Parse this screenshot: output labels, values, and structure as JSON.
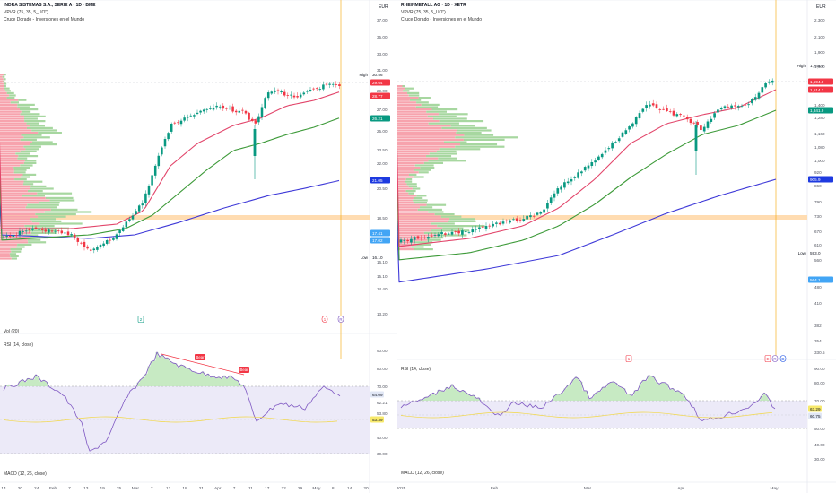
{
  "charts": [
    {
      "id": "left",
      "title": "INDRA SISTEMAS S.A., SERIE A · 1D · BME",
      "vpvr_label": "VPVR (75, 35, 5_UO\")",
      "indicator_label": "Cruce Dorado - Inversiones en el Mundo",
      "vol_label": "Vol (20)",
      "rsi_label": "RSI (14, close)",
      "macd_label": "MACD (12, 26, close)",
      "currency": "EUR",
      "price_ticks": [
        "37.00",
        "35.00",
        "33.00",
        "31.00",
        "29.00",
        "27.00",
        "25.00",
        "23.50",
        "22.00",
        "20.50",
        "18.50",
        "16.10",
        "15.10",
        "14.40",
        "13.20"
      ],
      "price_ticks_y": [
        22,
        41,
        60,
        78,
        101,
        122,
        146,
        167,
        182,
        210,
        243,
        292,
        308,
        322,
        350
      ],
      "rsi_ticks": [
        "90.00",
        "80.00",
        "70.00",
        "62.21",
        "53.80",
        "40.00",
        "30.00"
      ],
      "rsi_ticks_y": [
        391,
        411,
        431,
        449,
        461,
        488,
        506
      ],
      "x_ticks": [
        "14",
        "20",
        "24",
        "Feb",
        "7",
        "13",
        "19",
        "25",
        "Mar",
        "7",
        "12",
        "18",
        "21",
        "Apr",
        "7",
        "11",
        "17",
        "22",
        "29",
        "May",
        "8",
        "14",
        "20"
      ],
      "price_labels": [
        {
          "text": "High",
          "value": "30.56",
          "y": 83,
          "bg": "none"
        },
        {
          "text": "",
          "value": "29.64",
          "y": 92,
          "bg": "#f23645"
        },
        {
          "text": "",
          "value": "28.77",
          "y": 107,
          "bg": "#f23645"
        },
        {
          "text": "",
          "value": "26.21",
          "y": 132,
          "bg": "#089981"
        },
        {
          "text": "",
          "value": "21.05",
          "y": 201,
          "bg": "#1e3ae0"
        },
        {
          "text": "",
          "value": "17.41",
          "y": 260,
          "bg": "#42a5f5"
        },
        {
          "text": "",
          "value": "17.02",
          "y": 268,
          "bg": "#42a5f5"
        },
        {
          "text": "Low",
          "value": "16.10",
          "y": 287,
          "bg": "none"
        }
      ],
      "rsi_labels": [
        {
          "value": "64.09",
          "y": 440,
          "bg": "#e1e7f5"
        },
        {
          "value": "53.39",
          "y": 468,
          "bg": "#f7e96b"
        }
      ],
      "annotations": [
        "Bear",
        "Bear"
      ],
      "markers": [
        "2",
        "1",
        "R"
      ]
    },
    {
      "id": "right",
      "title": "RHEINMETALL AG · 1D · XETR",
      "vpvr_label": "VPVR (75, 35, 5_UO\")",
      "indicator_label": "Cruce Dorado - Inversiones en el Mundo",
      "vol_label": "",
      "rsi_label": "RSI (14, close)",
      "macd_label": "MACD (12, 26, close)",
      "currency": "EUR",
      "price_ticks": [
        "2,300",
        "2,100",
        "1,900",
        "1,600",
        "1,400",
        "1,280",
        "1,160",
        "1,080",
        "1,000",
        "920",
        "860",
        "790",
        "730",
        "670",
        "610",
        "560",
        "480",
        "410",
        "382",
        "354",
        "330.5"
      ],
      "price_ticks_y": [
        22,
        41,
        58,
        74,
        117,
        131,
        149,
        164,
        179,
        192,
        207,
        225,
        241,
        258,
        273,
        290,
        320,
        338,
        363,
        380,
        393
      ],
      "rsi_ticks": [
        "90.00",
        "80.00",
        "70.00",
        "50.00",
        "40.00",
        "30.00"
      ],
      "rsi_ticks_y": [
        411,
        427,
        447,
        478,
        496,
        512
      ],
      "x_ticks": [
        "2025",
        "Feb",
        "Mar",
        "Apr",
        "May"
      ],
      "price_labels": [
        {
          "text": "High",
          "value": "1,744.0",
          "y": 73,
          "bg": "none"
        },
        {
          "text": "",
          "value": "1,594.0",
          "y": 91,
          "bg": "#f23645"
        },
        {
          "text": "",
          "value": "1,514.2",
          "y": 100,
          "bg": "#f23645"
        },
        {
          "text": "",
          "value": "1,341.9",
          "y": 123,
          "bg": "#089981"
        },
        {
          "text": "",
          "value": "905.9",
          "y": 200,
          "bg": "#1e3ae0"
        },
        {
          "text": "Low",
          "value": "593.0",
          "y": 282,
          "bg": "none"
        },
        {
          "text": "",
          "value": "564.1",
          "y": 312,
          "bg": "#42a5f5"
        }
      ],
      "rsi_labels": [
        {
          "value": "63.29",
          "y": 456,
          "bg": "#f7e96b"
        },
        {
          "value": "60.75",
          "y": 464,
          "bg": "#e1e7f5"
        }
      ],
      "annotations": [],
      "markers": [
        "1",
        "E",
        "R",
        "D"
      ]
    }
  ]
}
